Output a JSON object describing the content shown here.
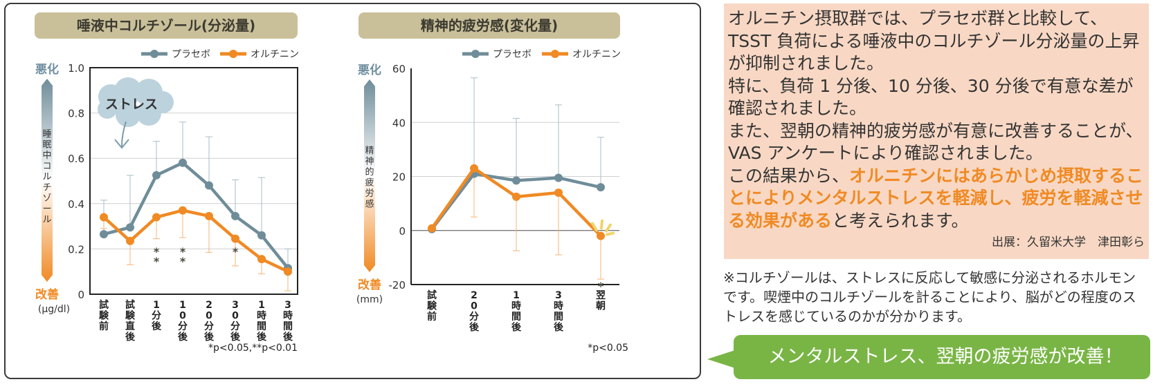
{
  "colors": {
    "placebo": "#6f8d99",
    "ornithine": "#f08a24",
    "title_bg": "#c9c09a",
    "text_panel_bg": "#f8d8c4",
    "callout_bg": "#79b545",
    "worse_label": "#6f8fa0",
    "better_label": "#f08a24"
  },
  "chart_data": [
    {
      "type": "line",
      "title": "唾液中コルチゾール(分泌量)",
      "legend": [
        "プラセボ",
        "オルチニン"
      ],
      "legend_position": "top-right",
      "ylabel": "睡眠中コルチゾール",
      "yunit": "(μg/dl)",
      "worse_label": "悪化",
      "better_label": "改善",
      "ylim": [
        0,
        1.0
      ],
      "yticks": [
        "0",
        "0.2",
        "0.4",
        "0.6",
        "0.8",
        "1.0"
      ],
      "grid": true,
      "categories": [
        "試験前",
        "試験直後",
        "1分後",
        "10分後",
        "20分後",
        "30分後",
        "1時間後",
        "3時間後"
      ],
      "series": [
        {
          "name": "プラセボ",
          "values": [
            0.265,
            0.295,
            0.525,
            0.58,
            0.48,
            0.345,
            0.26,
            0.115
          ],
          "error": [
            0.15,
            0.23,
            0.15,
            0.18,
            0.215,
            0.16,
            0.255,
            0.085
          ]
        },
        {
          "name": "オルチニン",
          "values": [
            0.34,
            0.235,
            0.34,
            0.37,
            0.345,
            0.245,
            0.155,
            0.1
          ],
          "error": [
            0.05,
            0.105,
            0.095,
            0.12,
            0.16,
            0.12,
            0.065,
            0.085
          ]
        }
      ],
      "significance": [
        {
          "category": "1分後",
          "mark": "**"
        },
        {
          "category": "10分後",
          "mark": "**"
        },
        {
          "category": "30分後",
          "mark": "*"
        }
      ],
      "annotation": "ストレス",
      "footnote": "*p<0.05,**p<0.01"
    },
    {
      "type": "line",
      "title": "精神的疲労感(変化量)",
      "legend": [
        "プラセボ",
        "オルチニン"
      ],
      "legend_position": "top-right",
      "ylabel": "精神的疲労感",
      "yunit": "(mm)",
      "worse_label": "悪化",
      "better_label": "改善",
      "ylim": [
        -20,
        60
      ],
      "yticks": [
        "-20",
        "0",
        "20",
        "40",
        "60"
      ],
      "grid": true,
      "categories": [
        "試験前",
        "20分後",
        "1時間後",
        "3時間後",
        "翌朝"
      ],
      "series": [
        {
          "name": "プラセボ",
          "values": [
            0.5,
            21,
            18.5,
            19.5,
            16
          ],
          "error": [
            0,
            35.5,
            23,
            27,
            18.5
          ]
        },
        {
          "name": "オルチニン",
          "values": [
            0.8,
            23,
            12.5,
            14,
            -2
          ],
          "error": [
            0,
            18,
            20,
            23,
            16
          ]
        }
      ],
      "significance": [
        {
          "category": "翌朝",
          "mark": "*"
        }
      ],
      "footnote": "*p<0.05"
    }
  ],
  "text_panel": {
    "p1": "オルニチン摂取群では、プラセボ群と比較して、TSST 負荷による唾液中のコルチゾール分泌量の上昇が抑制されました。",
    "p2": "特に、負荷 1 分後、10 分後、30 分後で有意な差が確認されました。",
    "p3": "また、翌朝の精神的疲労感が有意に改善することが、VAS アンケートにより確認されました。",
    "p4_lead": "この結果から、",
    "p4_highlight": "オルニチンにはあらかじめ摂取することによりメンタルストレスを軽減し、疲労を軽減させる効果がある",
    "p4_tail": "と考えられます。",
    "source": "出展：久留米大学　津田彰ら"
  },
  "note": "※コルチゾールは、ストレスに反応して敏感に分泌されるホルモンです。喫煙中のコルチゾールを計ることにより、脳がどの程度のストレスを感じているのかが分かります。",
  "callout": "メンタルストレス、翌朝の疲労感が改善！"
}
